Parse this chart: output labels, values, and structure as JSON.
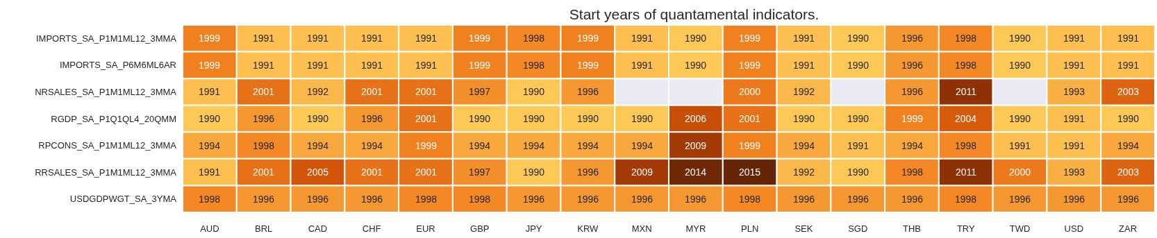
{
  "chart_data": {
    "type": "heatmap",
    "title": "Start years of quantamental indicators.",
    "categories": [
      "AUD",
      "BRL",
      "CAD",
      "CHF",
      "EUR",
      "GBP",
      "JPY",
      "KRW",
      "MXN",
      "MYR",
      "PLN",
      "SEK",
      "SGD",
      "THB",
      "TRY",
      "TWD",
      "USD",
      "ZAR"
    ],
    "y_categories": [
      "IMPORTS_SA_P1M1ML12_3MMA",
      "IMPORTS_SA_P6M6ML6AR",
      "NRSALES_SA_P1M1ML12_3MMA",
      "RGDP_SA_P1Q1QL4_20QMM",
      "RPCONS_SA_P1M1ML12_3MMA",
      "RRSALES_SA_P1M1ML12_3MMA",
      "USDGDPWGT_SA_3YMA"
    ],
    "cells": [
      [
        1999,
        1991,
        1991,
        1991,
        1991,
        1999,
        1998,
        1999,
        1991,
        1990,
        1999,
        1991,
        1990,
        1996,
        1998,
        1990,
        1991,
        1991
      ],
      [
        1999,
        1991,
        1991,
        1991,
        1991,
        1999,
        1998,
        1999,
        1991,
        1990,
        1999,
        1991,
        1990,
        1996,
        1998,
        1990,
        1991,
        1991
      ],
      [
        1991,
        2001,
        1992,
        2001,
        2001,
        1997,
        1990,
        1996,
        null,
        null,
        2000,
        1992,
        null,
        1996,
        2011,
        null,
        1993,
        2003
      ],
      [
        1990,
        1996,
        1990,
        1996,
        2001,
        1990,
        1990,
        1990,
        1990,
        2006,
        2001,
        1990,
        1990,
        1999,
        2004,
        1990,
        1991,
        1990
      ],
      [
        1994,
        1998,
        1994,
        1994,
        1999,
        1994,
        1994,
        1994,
        1994,
        2009,
        1999,
        1994,
        1991,
        1994,
        1998,
        1991,
        1991,
        1994
      ],
      [
        1991,
        2001,
        2005,
        2001,
        2001,
        1997,
        1990,
        1996,
        2009,
        2014,
        2015,
        1992,
        1990,
        1998,
        2011,
        2000,
        1993,
        2003
      ],
      [
        1998,
        1996,
        1996,
        1996,
        1998,
        1998,
        1996,
        1996,
        1996,
        1996,
        1998,
        1996,
        1996,
        1996,
        1998,
        1996,
        1996,
        1996
      ]
    ],
    "data_labels": true
  }
}
